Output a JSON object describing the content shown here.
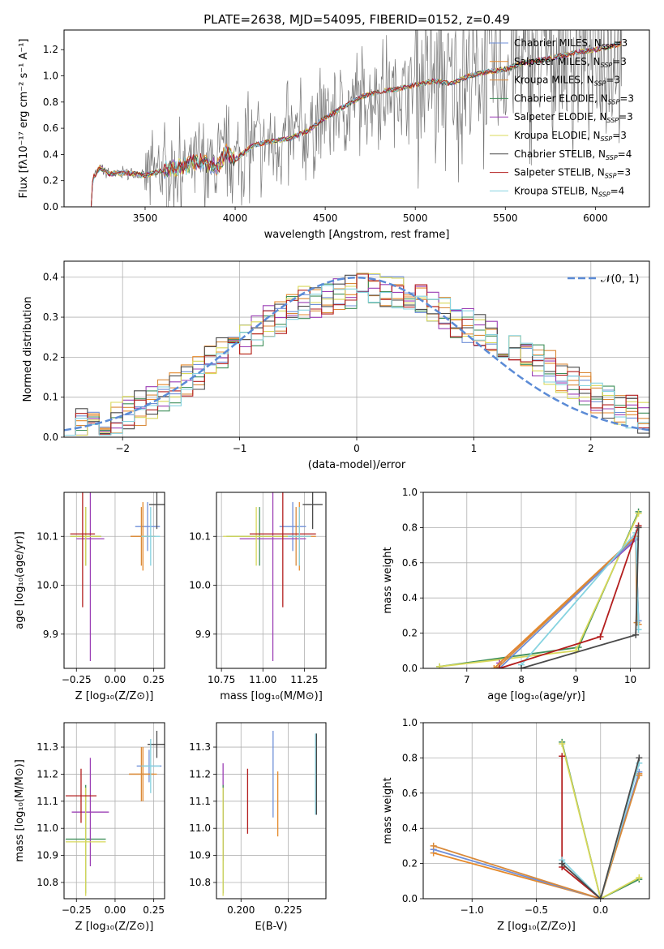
{
  "figure": {
    "title": "PLATE=2638, MJD=54095, FIBERID=0152, z=0.49"
  },
  "colors": {
    "Chabrier MILES": "#6f8fd8",
    "Salpeter MILES": "#e58a2c",
    "Kroupa MILES": "#d98a3a",
    "Chabrier ELODIE": "#3f8f5a",
    "Salpeter ELODIE": "#9b3fb5",
    "Kroupa ELODIE": "#d8d85a",
    "Chabrier STELIB": "#4a4a4a",
    "Salpeter STELIB": "#b31e1e",
    "Kroupa STELIB": "#86d3e0",
    "data": "#777777",
    "gaussian": "#5b8bd6"
  },
  "chart_data": [
    {
      "id": "spectrum",
      "type": "line",
      "title": "PLATE=2638, MJD=54095, FIBERID=0152, z=0.49",
      "xlabel": "wavelength [Angstrom, rest frame]",
      "ylabel": "Flux [fλ10⁻¹⁷ erg cm⁻² s⁻¹ A⁻¹]",
      "xlim": [
        3050,
        6300
      ],
      "ylim": [
        0,
        1.35
      ],
      "xticks": [
        3500,
        4000,
        4500,
        5000,
        5500,
        6000
      ],
      "yticks": [
        0.0,
        0.2,
        0.4,
        0.6,
        0.8,
        1.0,
        1.2
      ],
      "grid": false,
      "legend_position": "top-right",
      "legend": [
        {
          "name": "Chabrier MILES",
          "label": "Chabrier MILES, N",
          "sub": "SSP",
          "tail": "=3"
        },
        {
          "name": "Salpeter MILES",
          "label": "Salpeter MILES, N",
          "sub": "SSP",
          "tail": "=3"
        },
        {
          "name": "Kroupa MILES",
          "label": "Kroupa MILES, N",
          "sub": "SSP",
          "tail": "=3"
        },
        {
          "name": "Chabrier ELODIE",
          "label": "Chabrier ELODIE, N",
          "sub": "SSP",
          "tail": "=3"
        },
        {
          "name": "Salpeter ELODIE",
          "label": "Salpeter ELODIE, N",
          "sub": "SSP",
          "tail": "=3"
        },
        {
          "name": "Kroupa ELODIE",
          "label": "Kroupa ELODIE, N",
          "sub": "SSP",
          "tail": "=3"
        },
        {
          "name": "Chabrier STELIB",
          "label": "Chabrier STELIB, N",
          "sub": "SSP",
          "tail": "=4"
        },
        {
          "name": "Salpeter STELIB",
          "label": "Salpeter STELIB, N",
          "sub": "SSP",
          "tail": "=3"
        },
        {
          "name": "Kroupa STELIB",
          "label": "Kroupa STELIB, N",
          "sub": "SSP",
          "tail": "=4"
        }
      ],
      "model_continuum": [
        [
          3200,
          0.0
        ],
        [
          3210,
          0.22
        ],
        [
          3250,
          0.3
        ],
        [
          3300,
          0.25
        ],
        [
          3400,
          0.26
        ],
        [
          3500,
          0.24
        ],
        [
          3600,
          0.28
        ],
        [
          3700,
          0.3
        ],
        [
          3800,
          0.35
        ],
        [
          3900,
          0.3
        ],
        [
          3950,
          0.42
        ],
        [
          4000,
          0.36
        ],
        [
          4100,
          0.47
        ],
        [
          4200,
          0.5
        ],
        [
          4300,
          0.52
        ],
        [
          4400,
          0.58
        ],
        [
          4500,
          0.68
        ],
        [
          4600,
          0.76
        ],
        [
          4700,
          0.84
        ],
        [
          4800,
          0.88
        ],
        [
          4900,
          0.9
        ],
        [
          5000,
          0.93
        ],
        [
          5100,
          0.96
        ],
        [
          5200,
          0.94
        ],
        [
          5300,
          1.0
        ],
        [
          5400,
          1.03
        ],
        [
          5500,
          1.05
        ],
        [
          5600,
          1.1
        ],
        [
          5700,
          1.12
        ],
        [
          5800,
          1.15
        ],
        [
          5900,
          1.18
        ],
        [
          6000,
          1.2
        ],
        [
          6100,
          1.23
        ],
        [
          6150,
          1.25
        ]
      ]
    },
    {
      "id": "residuals",
      "type": "line",
      "xlabel": "(data-model)/error",
      "ylabel": "Normed distribution",
      "xlim": [
        -2.5,
        2.5
      ],
      "ylim": [
        0,
        0.44
      ],
      "xticks": [
        -2,
        -1,
        0,
        1,
        2
      ],
      "yticks": [
        0.0,
        0.1,
        0.2,
        0.3,
        0.4
      ],
      "grid": true,
      "legend_position": "top-right",
      "legend": [
        {
          "name": "gaussian",
          "label": "𝒩(0, 1)"
        }
      ],
      "histogram_envelope": [
        [
          -2.5,
          0.02
        ],
        [
          -2.0,
          0.05
        ],
        [
          -1.5,
          0.13
        ],
        [
          -1.0,
          0.24
        ],
        [
          -0.5,
          0.33
        ],
        [
          0.0,
          0.37
        ],
        [
          0.5,
          0.35
        ],
        [
          1.0,
          0.27
        ],
        [
          1.5,
          0.2
        ],
        [
          2.0,
          0.11
        ],
        [
          2.5,
          0.04
        ]
      ]
    },
    {
      "id": "age-vs-Z",
      "type": "scatter",
      "xlabel": "Z [log₁₀(Z/Z⊙)]",
      "ylabel": "age  [log₁₀(age/yr)]",
      "xlim": [
        -0.33,
        0.32
      ],
      "ylim": [
        9.83,
        10.19
      ],
      "xticks": [
        -0.25,
        0.0,
        0.25
      ],
      "xticklabels": [
        "−0.25",
        "0.00",
        "0.25"
      ],
      "yticks": [
        9.9,
        10.0,
        10.1
      ],
      "grid": true,
      "points": [
        {
          "series": "Chabrier MILES",
          "x": 0.21,
          "y": 10.12,
          "xerr": 0.08,
          "yerr": 0.05
        },
        {
          "series": "Salpeter MILES",
          "x": 0.18,
          "y": 10.1,
          "xerr": 0.08,
          "yerr": 0.07
        },
        {
          "series": "Kroupa MILES",
          "x": 0.17,
          "y": 10.1,
          "xerr": 0.07,
          "yerr": 0.06
        },
        {
          "series": "Chabrier ELODIE",
          "x": -0.19,
          "y": 10.1,
          "xerr": 0.1,
          "yerr": 0.06
        },
        {
          "series": "Salpeter ELODIE",
          "x": -0.16,
          "y": 10.095,
          "xerr": 0.09,
          "yerr": 0.25
        },
        {
          "series": "Kroupa ELODIE",
          "x": -0.19,
          "y": 10.1,
          "xerr": 0.1,
          "yerr": 0.06
        },
        {
          "series": "Chabrier STELIB",
          "x": 0.27,
          "y": 10.165,
          "xerr": 0.05,
          "yerr": 0.05
        },
        {
          "series": "Salpeter STELIB",
          "x": -0.21,
          "y": 10.105,
          "xerr": 0.08,
          "yerr": 0.15
        },
        {
          "series": "Kroupa STELIB",
          "x": 0.23,
          "y": 10.1,
          "xerr": 0.06,
          "yerr": 0.06
        }
      ]
    },
    {
      "id": "age-vs-mass",
      "type": "scatter",
      "xlabel": "mass [log₁₀(M/M⊙)]",
      "ylabel": "",
      "xlim": [
        10.72,
        11.38
      ],
      "ylim": [
        9.83,
        10.19
      ],
      "xticks": [
        10.75,
        11.0,
        11.25
      ],
      "xticklabels": [
        "10.75",
        "11.00",
        "11.25"
      ],
      "yticks": [
        9.9,
        10.0,
        10.1
      ],
      "grid": true,
      "points": [
        {
          "series": "Chabrier MILES",
          "x": 11.18,
          "y": 10.12,
          "xerr": 0.08,
          "yerr": 0.05
        },
        {
          "series": "Salpeter MILES",
          "x": 11.22,
          "y": 10.1,
          "xerr": 0.1,
          "yerr": 0.07
        },
        {
          "series": "Kroupa MILES",
          "x": 11.2,
          "y": 10.1,
          "xerr": 0.09,
          "yerr": 0.06
        },
        {
          "series": "Chabrier ELODIE",
          "x": 10.98,
          "y": 10.1,
          "xerr": 0.2,
          "yerr": 0.06
        },
        {
          "series": "Salpeter ELODIE",
          "x": 11.06,
          "y": 10.095,
          "xerr": 0.2,
          "yerr": 0.25
        },
        {
          "series": "Kroupa ELODIE",
          "x": 10.96,
          "y": 10.1,
          "xerr": 0.2,
          "yerr": 0.06
        },
        {
          "series": "Chabrier STELIB",
          "x": 11.3,
          "y": 10.165,
          "xerr": 0.06,
          "yerr": 0.05
        },
        {
          "series": "Salpeter STELIB",
          "x": 11.12,
          "y": 10.105,
          "xerr": 0.2,
          "yerr": 0.15
        },
        {
          "series": "Kroupa STELIB",
          "x": 11.22,
          "y": 10.1,
          "xerr": 0.07,
          "yerr": 0.06
        }
      ]
    },
    {
      "id": "weight-vs-age",
      "type": "line",
      "xlabel": "age  [log₁₀(age/yr)]",
      "ylabel": "mass weight",
      "xlim": [
        6.2,
        10.35
      ],
      "ylim": [
        0,
        1.0
      ],
      "xticks": [
        7,
        8,
        9,
        10
      ],
      "yticks": [
        0.0,
        0.2,
        0.4,
        0.6,
        0.8,
        1.0
      ],
      "grid": true,
      "series": [
        {
          "name": "Chabrier ELODIE",
          "points": [
            [
              6.5,
              0.01
            ],
            [
              9.05,
              0.12
            ],
            [
              10.15,
              0.89
            ]
          ]
        },
        {
          "name": "Kroupa ELODIE",
          "points": [
            [
              6.5,
              0.01
            ],
            [
              9.0,
              0.1
            ],
            [
              10.15,
              0.88
            ]
          ]
        },
        {
          "name": "Salpeter ELODIE",
          "points": [
            [
              7.6,
              0.03
            ],
            [
              10.1,
              0.73
            ],
            [
              10.15,
              0.25
            ]
          ]
        },
        {
          "name": "Salpeter MILES",
          "points": [
            [
              7.5,
              0.0
            ],
            [
              10.1,
              0.75
            ],
            [
              10.15,
              0.25
            ]
          ]
        },
        {
          "name": "Kroupa MILES",
          "points": [
            [
              7.55,
              0.0
            ],
            [
              10.1,
              0.75
            ],
            [
              10.12,
              0.26
            ]
          ]
        },
        {
          "name": "Chabrier MILES",
          "points": [
            [
              7.6,
              0.0
            ],
            [
              10.1,
              0.74
            ],
            [
              10.15,
              0.27
            ]
          ]
        },
        {
          "name": "Kroupa STELIB",
          "points": [
            [
              8.0,
              0.02
            ],
            [
              10.1,
              0.77
            ],
            [
              10.15,
              0.22
            ]
          ]
        },
        {
          "name": "Salpeter STELIB",
          "points": [
            [
              7.6,
              0.0
            ],
            [
              9.45,
              0.18
            ],
            [
              10.15,
              0.81
            ]
          ]
        },
        {
          "name": "Chabrier STELIB",
          "points": [
            [
              8.0,
              0.0
            ],
            [
              10.1,
              0.19
            ],
            [
              10.15,
              0.8
            ]
          ]
        }
      ]
    },
    {
      "id": "mass-vs-Z",
      "type": "scatter",
      "xlabel": "Z [log₁₀(Z/Z⊙)]",
      "ylabel": "mass [log₁₀(M/M⊙)]",
      "xlim": [
        -0.33,
        0.32
      ],
      "ylim": [
        10.74,
        11.39
      ],
      "xticks": [
        -0.25,
        0.0,
        0.25
      ],
      "xticklabels": [
        "−0.25",
        "0.00",
        "0.25"
      ],
      "yticks": [
        10.8,
        10.9,
        11.0,
        11.1,
        11.2,
        11.3
      ],
      "grid": true,
      "points": [
        {
          "series": "Chabrier MILES",
          "x": 0.22,
          "y": 11.23,
          "xerr": 0.08,
          "yerr": 0.06
        },
        {
          "series": "Salpeter MILES",
          "x": 0.18,
          "y": 11.2,
          "xerr": 0.09,
          "yerr": 0.1
        },
        {
          "series": "Kroupa MILES",
          "x": 0.17,
          "y": 11.2,
          "xerr": 0.08,
          "yerr": 0.1
        },
        {
          "series": "Chabrier ELODIE",
          "x": -0.19,
          "y": 10.96,
          "xerr": 0.13,
          "yerr": 0.2
        },
        {
          "series": "Salpeter ELODIE",
          "x": -0.16,
          "y": 11.06,
          "xerr": 0.12,
          "yerr": 0.2
        },
        {
          "series": "Kroupa ELODIE",
          "x": -0.19,
          "y": 10.95,
          "xerr": 0.13,
          "yerr": 0.2
        },
        {
          "series": "Chabrier STELIB",
          "x": 0.27,
          "y": 11.31,
          "xerr": 0.06,
          "yerr": 0.05
        },
        {
          "series": "Salpeter STELIB",
          "x": -0.22,
          "y": 11.12,
          "xerr": 0.1,
          "yerr": 0.1
        },
        {
          "series": "Kroupa STELIB",
          "x": 0.23,
          "y": 11.23,
          "xerr": 0.06,
          "yerr": 0.1
        }
      ]
    },
    {
      "id": "mass-vs-EBV",
      "type": "scatter",
      "xlabel": "E(B-V)",
      "ylabel": "",
      "xlim": [
        0.187,
        0.245
      ],
      "ylim": [
        10.74,
        11.39
      ],
      "xticks": [
        0.2,
        0.225
      ],
      "xticklabels": [
        "0.200",
        "0.225"
      ],
      "yticks": [
        10.8,
        10.9,
        11.0,
        11.1,
        11.2,
        11.3
      ],
      "grid": true,
      "points": [
        {
          "series": "Salpeter ELODIE",
          "x": 0.1905,
          "y": 11.06,
          "yerr": 0.18
        },
        {
          "series": "Chabrier ELODIE",
          "x": 0.1905,
          "y": 10.96,
          "yerr": 0.2
        },
        {
          "series": "Kroupa ELODIE",
          "x": 0.1905,
          "y": 10.95,
          "yerr": 0.2
        },
        {
          "series": "Salpeter STELIB",
          "x": 0.2035,
          "y": 11.1,
          "yerr": 0.12
        },
        {
          "series": "Chabrier MILES",
          "x": 0.217,
          "y": 11.2,
          "yerr": 0.16
        },
        {
          "series": "Salpeter MILES",
          "x": 0.2195,
          "y": 11.09,
          "yerr": 0.12
        },
        {
          "series": "Kroupa STELIB",
          "x": 0.2395,
          "y": 11.2,
          "yerr": 0.15
        },
        {
          "series": "Chabrier STELIB",
          "x": 0.24,
          "y": 11.2,
          "yerr": 0.15
        }
      ]
    },
    {
      "id": "weight-vs-Z",
      "type": "line",
      "xlabel": "Z [log₁₀(Z/Z⊙)]",
      "ylabel": "mass weight",
      "xlim": [
        -1.38,
        0.38
      ],
      "ylim": [
        0,
        1.0
      ],
      "xticks": [
        -1.0,
        -0.5,
        0.0
      ],
      "xticklabels": [
        "−1.0",
        "−0.5",
        "0.0"
      ],
      "yticks": [
        0.0,
        0.2,
        0.4,
        0.6,
        0.8,
        1.0
      ],
      "grid": true,
      "series": [
        {
          "name": "Salpeter MILES",
          "points": [
            [
              -1.3,
              0.26
            ],
            [
              0.0,
              0.0
            ],
            [
              0.3,
              0.71
            ]
          ]
        },
        {
          "name": "Chabrier MILES",
          "points": [
            [
              -1.3,
              0.28
            ],
            [
              0.0,
              0.0
            ],
            [
              0.3,
              0.72
            ]
          ]
        },
        {
          "name": "Kroupa MILES",
          "points": [
            [
              -1.3,
              0.3
            ],
            [
              0.0,
              0.0
            ],
            [
              0.3,
              0.7
            ]
          ]
        },
        {
          "name": "Chabrier ELODIE",
          "points": [
            [
              -0.3,
              0.89
            ],
            [
              0.0,
              0.0
            ],
            [
              0.3,
              0.11
            ]
          ]
        },
        {
          "name": "Kroupa ELODIE",
          "points": [
            [
              -0.3,
              0.88
            ],
            [
              0.0,
              0.0
            ],
            [
              0.3,
              0.12
            ]
          ]
        },
        {
          "name": "Salpeter STELIB",
          "points": [
            [
              -0.3,
              0.81
            ],
            [
              -0.3,
              0.18
            ],
            [
              0.0,
              0.0
            ]
          ]
        },
        {
          "name": "Kroupa STELIB",
          "points": [
            [
              -0.3,
              0.22
            ],
            [
              0.0,
              0.0
            ],
            [
              0.3,
              0.77
            ]
          ]
        },
        {
          "name": "Chabrier STELIB",
          "points": [
            [
              -0.3,
              0.2
            ],
            [
              0.0,
              0.0
            ],
            [
              0.3,
              0.8
            ]
          ]
        }
      ]
    }
  ]
}
